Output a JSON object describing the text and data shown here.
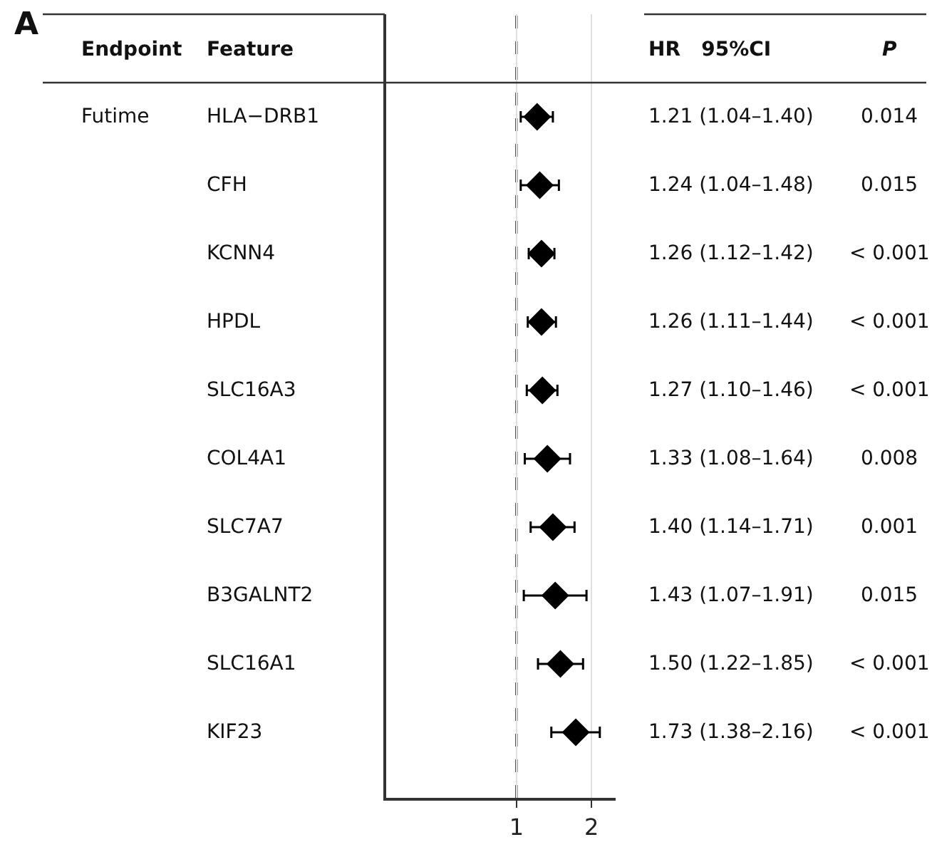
{
  "chart_data": {
    "type": "scatter",
    "orientation": "horizontal",
    "log": "x",
    "marker": "diamond",
    "grid": "x",
    "color": "#000000",
    "categories": [
      "HLA−DRB1",
      "CFH",
      "KCNN4",
      "HPDL",
      "SLC16A3",
      "COL4A1",
      "SLC7A7",
      "B3GALNT2",
      "SLC16A1",
      "KIF23"
    ],
    "values": [
      1.21,
      1.24,
      1.26,
      1.26,
      1.27,
      1.33,
      1.4,
      1.43,
      1.5,
      1.73
    ],
    "errors": [
      [
        1.04,
        1.4
      ],
      [
        1.04,
        1.48
      ],
      [
        1.12,
        1.42
      ],
      [
        1.11,
        1.44
      ],
      [
        1.1,
        1.46
      ],
      [
        1.08,
        1.64
      ],
      [
        1.14,
        1.71
      ],
      [
        1.07,
        1.91
      ],
      [
        1.22,
        1.85
      ],
      [
        1.38,
        2.16
      ]
    ],
    "value_labels": [
      "1.21 (1.04–1.40)",
      "1.24 (1.04–1.48)",
      "1.26 (1.12–1.42)",
      "1.26 (1.11–1.44)",
      "1.27 (1.10–1.46)",
      "1.33 (1.08–1.64)",
      "1.40 (1.14–1.71)",
      "1.43 (1.07–1.91)",
      "1.50 (1.22–1.85)",
      "1.73 (1.38–2.16)"
    ],
    "xlim": [
      0.3,
      2.5
    ],
    "xticks": [
      1,
      2
    ],
    "ref_lines": [
      {
        "axis": "x",
        "value": 1,
        "line_style": "dashed",
        "color": "#000000"
      }
    ],
    "annotations": [
      "A",
      "Endpoint",
      "Feature",
      "HR   95%CI",
      "P",
      "Futime",
      "0.014",
      "0.015",
      "< 0.001",
      "< 0.001",
      "< 0.001",
      "0.008",
      "0.001",
      "0.015",
      "< 0.001",
      "< 0.001"
    ]
  }
}
